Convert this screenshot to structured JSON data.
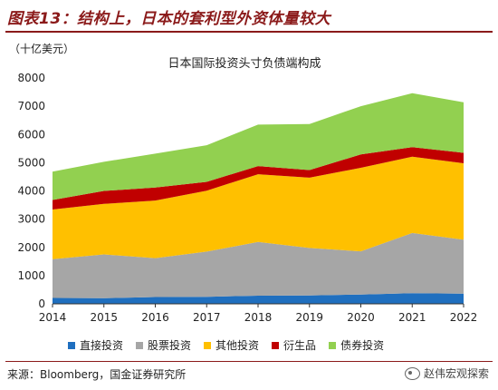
{
  "figure_title": "图表13：结构上，日本的套利型外资体量较大",
  "source": "来源：Bloomberg，国金证券研究所",
  "watermark": "赵伟宏观探索",
  "watermark_icon": "wechat-icon",
  "chart_data": {
    "type": "area",
    "stacked": true,
    "title": "日本国际投资头寸负债端构成",
    "unit_label": "（十亿美元）",
    "xlabel": "",
    "ylabel": "",
    "x": [
      2014,
      2015,
      2016,
      2017,
      2018,
      2019,
      2020,
      2021,
      2022
    ],
    "ylim": [
      0,
      8000
    ],
    "yticks": [
      0,
      1000,
      2000,
      3000,
      4000,
      5000,
      6000,
      7000,
      8000
    ],
    "grid": false,
    "legend_position": "bottom",
    "series": [
      {
        "name": "直接投资",
        "color": "#1f6fbf",
        "values": [
          210,
          200,
          240,
          250,
          290,
          300,
          330,
          380,
          360
        ]
      },
      {
        "name": "股票投资",
        "color": "#a6a6a6",
        "values": [
          1370,
          1550,
          1380,
          1600,
          1900,
          1680,
          1530,
          2130,
          1910
        ]
      },
      {
        "name": "其他投资",
        "color": "#ffc000",
        "values": [
          1760,
          1790,
          2040,
          2160,
          2400,
          2490,
          2960,
          2700,
          2710
        ]
      },
      {
        "name": "衍生品",
        "color": "#c00000",
        "values": [
          340,
          460,
          460,
          310,
          290,
          270,
          470,
          340,
          370
        ]
      },
      {
        "name": "债券投资",
        "color": "#92d050",
        "values": [
          1000,
          1030,
          1200,
          1300,
          1470,
          1630,
          1710,
          1910,
          1790
        ]
      }
    ]
  }
}
